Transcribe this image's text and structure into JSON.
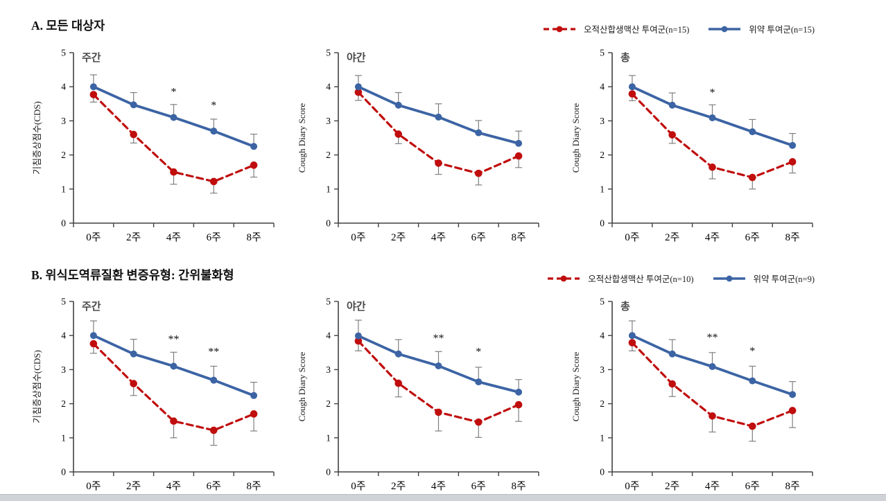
{
  "colors": {
    "treatment": "#c00d0d",
    "placebo": "#3c64a4",
    "error": "#7f7f7f",
    "axis": "#404040"
  },
  "sections": [
    {
      "id": "A",
      "title": "A. 모든 대상자",
      "legend": [
        {
          "label": "오적산합생맥산 투여군(n=15)",
          "series": "treatment",
          "style": "dashed"
        },
        {
          "label": "위약 투여군(n=15)",
          "series": "placebo",
          "style": "solid"
        }
      ]
    },
    {
      "id": "B",
      "title": "B. 위식도역류질환 변증유형: 간위불화형",
      "legend": [
        {
          "label": "오적산합생맥산 투여군(n=10)",
          "series": "treatment",
          "style": "dashed"
        },
        {
          "label": "위약 투여군(n=9)",
          "series": "placebo",
          "style": "solid"
        }
      ]
    }
  ],
  "chart_data": [
    {
      "type": "line",
      "section": "A",
      "title": "주간",
      "ylabel": "기침증상점수(CDS)",
      "categories": [
        "0주",
        "2주",
        "4주",
        "6주",
        "8주"
      ],
      "ylim": [
        0,
        5
      ],
      "yticks": [
        0,
        1,
        2,
        3,
        4,
        5
      ],
      "grid": false,
      "series": [
        {
          "name": "오적산합생맥산 투여군",
          "color_key": "treatment",
          "style": "dashed",
          "err_dir": "down",
          "values": [
            3.77,
            2.6,
            1.5,
            1.22,
            1.7
          ],
          "err": [
            0.22,
            0.25,
            0.36,
            0.34,
            0.35
          ]
        },
        {
          "name": "위약 투여군",
          "color_key": "placebo",
          "style": "solid",
          "err_dir": "up",
          "values": [
            4.0,
            3.47,
            3.1,
            2.7,
            2.25
          ],
          "err": [
            0.35,
            0.36,
            0.38,
            0.35,
            0.36
          ]
        }
      ],
      "annotations": [
        {
          "category_index": 2,
          "text": "*",
          "y": 3.75
        },
        {
          "category_index": 3,
          "text": "*",
          "y": 3.35
        }
      ]
    },
    {
      "type": "line",
      "section": "A",
      "title": "야간",
      "ylabel": "Cough Diary Score",
      "categories": [
        "0주",
        "2주",
        "4주",
        "6주",
        "8주"
      ],
      "ylim": [
        0,
        5
      ],
      "yticks": [
        0,
        1,
        2,
        3,
        4,
        5
      ],
      "grid": false,
      "series": [
        {
          "name": "오적산합생맥산 투여군",
          "color_key": "treatment",
          "style": "dashed",
          "err_dir": "down",
          "values": [
            3.84,
            2.61,
            1.76,
            1.46,
            1.97
          ],
          "err": [
            0.24,
            0.28,
            0.33,
            0.34,
            0.34
          ]
        },
        {
          "name": "위약 투여군",
          "color_key": "placebo",
          "style": "solid",
          "err_dir": "up",
          "values": [
            4.0,
            3.46,
            3.11,
            2.65,
            2.34
          ],
          "err": [
            0.33,
            0.37,
            0.39,
            0.36,
            0.36
          ]
        }
      ],
      "annotations": []
    },
    {
      "type": "line",
      "section": "A",
      "title": "총",
      "ylabel": "Cough Diary Score",
      "categories": [
        "0주",
        "2주",
        "4주",
        "6주",
        "8주"
      ],
      "ylim": [
        0,
        5
      ],
      "yticks": [
        0,
        1,
        2,
        3,
        4,
        5
      ],
      "grid": false,
      "series": [
        {
          "name": "오적산합생맥산 투여군",
          "color_key": "treatment",
          "style": "dashed",
          "err_dir": "down",
          "values": [
            3.79,
            2.59,
            1.64,
            1.34,
            1.8
          ],
          "err": [
            0.2,
            0.25,
            0.34,
            0.34,
            0.33
          ]
        },
        {
          "name": "위약 투여군",
          "color_key": "placebo",
          "style": "solid",
          "err_dir": "up",
          "values": [
            4.0,
            3.46,
            3.09,
            2.68,
            2.28
          ],
          "err": [
            0.33,
            0.36,
            0.38,
            0.36,
            0.35
          ]
        }
      ],
      "annotations": [
        {
          "category_index": 2,
          "text": "*",
          "y": 3.73
        }
      ]
    },
    {
      "type": "line",
      "section": "B",
      "title": "주간",
      "ylabel": "기침증상점수(CDS)",
      "categories": [
        "0주",
        "2주",
        "4주",
        "6주",
        "8주"
      ],
      "ylim": [
        0,
        5
      ],
      "yticks": [
        0,
        1,
        2,
        3,
        4,
        5
      ],
      "grid": false,
      "series": [
        {
          "name": "오적산합생맥산 투여군",
          "color_key": "treatment",
          "style": "dashed",
          "err_dir": "down",
          "values": [
            3.76,
            2.59,
            1.49,
            1.22,
            1.7
          ],
          "err": [
            0.28,
            0.35,
            0.49,
            0.44,
            0.5
          ]
        },
        {
          "name": "위약 투여군",
          "color_key": "placebo",
          "style": "solid",
          "err_dir": "up",
          "values": [
            4.0,
            3.46,
            3.1,
            2.69,
            2.24
          ],
          "err": [
            0.43,
            0.43,
            0.41,
            0.41,
            0.39
          ]
        }
      ],
      "annotations": [
        {
          "category_index": 2,
          "text": "**",
          "y": 3.79
        },
        {
          "category_index": 3,
          "text": "**",
          "y": 3.42
        }
      ]
    },
    {
      "type": "line",
      "section": "B",
      "title": "야간",
      "ylabel": "Cough Diary Score",
      "categories": [
        "0주",
        "2주",
        "4주",
        "6주",
        "8주"
      ],
      "ylim": [
        0,
        5
      ],
      "yticks": [
        0,
        1,
        2,
        3,
        4,
        5
      ],
      "grid": false,
      "series": [
        {
          "name": "오적산합생맥산 투여군",
          "color_key": "treatment",
          "style": "dashed",
          "err_dir": "down",
          "values": [
            3.84,
            2.6,
            1.75,
            1.46,
            1.97
          ],
          "err": [
            0.29,
            0.4,
            0.55,
            0.45,
            0.49
          ]
        },
        {
          "name": "위약 투여군",
          "color_key": "placebo",
          "style": "solid",
          "err_dir": "up",
          "values": [
            3.99,
            3.46,
            3.11,
            2.64,
            2.34
          ],
          "err": [
            0.46,
            0.42,
            0.42,
            0.43,
            0.37
          ]
        }
      ],
      "annotations": [
        {
          "category_index": 2,
          "text": "**",
          "y": 3.82
        },
        {
          "category_index": 3,
          "text": "*",
          "y": 3.42
        }
      ]
    },
    {
      "type": "line",
      "section": "B",
      "title": "총",
      "ylabel": "Cough Diary Score",
      "categories": [
        "0주",
        "2주",
        "4주",
        "6주",
        "8주"
      ],
      "ylim": [
        0,
        5
      ],
      "yticks": [
        0,
        1,
        2,
        3,
        4,
        5
      ],
      "grid": false,
      "series": [
        {
          "name": "오적산합생맥산 투여군",
          "color_key": "treatment",
          "style": "dashed",
          "err_dir": "down",
          "values": [
            3.79,
            2.58,
            1.64,
            1.34,
            1.8
          ],
          "err": [
            0.24,
            0.37,
            0.47,
            0.44,
            0.5
          ]
        },
        {
          "name": "위약 투여군",
          "color_key": "placebo",
          "style": "solid",
          "err_dir": "up",
          "values": [
            4.0,
            3.46,
            3.09,
            2.67,
            2.27
          ],
          "err": [
            0.43,
            0.42,
            0.41,
            0.43,
            0.38
          ]
        }
      ],
      "annotations": [
        {
          "category_index": 2,
          "text": "**",
          "y": 3.84
        },
        {
          "category_index": 3,
          "text": "*",
          "y": 3.45
        }
      ]
    }
  ]
}
